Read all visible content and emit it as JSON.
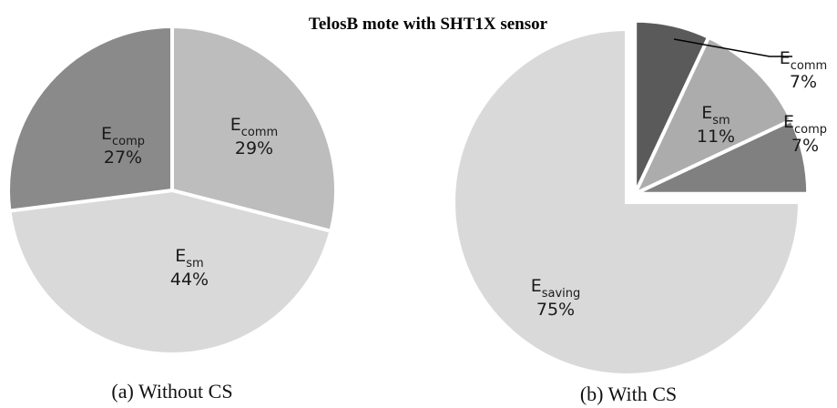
{
  "title": "TelosB mote with SHT1X sensor",
  "chart_data": [
    {
      "type": "pie",
      "caption": "(a) Without CS",
      "categories": [
        {
          "text": "E",
          "sub": "comm"
        },
        {
          "text": "E",
          "sub": "sm"
        },
        {
          "text": "E",
          "sub": "comp"
        }
      ],
      "values": [
        29,
        44,
        27
      ],
      "value_labels": [
        "29%",
        "44%",
        "27%"
      ],
      "colors": [
        "#bdbdbd",
        "#d9d9d9",
        "#8a8a8a"
      ]
    },
    {
      "type": "pie",
      "caption": "(b) With CS",
      "categories": [
        {
          "text": "E",
          "sub": "comm"
        },
        {
          "text": "E",
          "sub": "sm"
        },
        {
          "text": "E",
          "sub": "comp"
        },
        {
          "text": "E",
          "sub": "saving"
        }
      ],
      "values": [
        7,
        11,
        7,
        75
      ],
      "value_labels": [
        "7%",
        "11%",
        "7%",
        "75%"
      ],
      "colors": [
        "#5a5a5a",
        "#acacac",
        "#808080",
        "#d9d9d9"
      ],
      "exploded": [
        true,
        true,
        true,
        false
      ]
    }
  ]
}
